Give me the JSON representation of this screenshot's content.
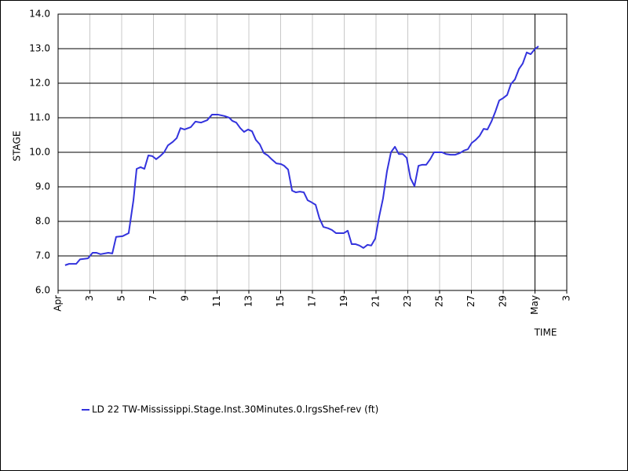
{
  "chart_data": {
    "type": "line",
    "xlabel": "TIME",
    "ylabel": "STAGE",
    "xlim": [
      0,
      32
    ],
    "ylim": [
      6,
      14
    ],
    "xticks": [
      {
        "value": 0,
        "label": "Apr"
      },
      {
        "value": 2,
        "label": "3"
      },
      {
        "value": 4,
        "label": "5"
      },
      {
        "value": 6,
        "label": "7"
      },
      {
        "value": 8,
        "label": "9"
      },
      {
        "value": 10,
        "label": "11"
      },
      {
        "value": 12,
        "label": "13"
      },
      {
        "value": 14,
        "label": "15"
      },
      {
        "value": 16,
        "label": "17"
      },
      {
        "value": 18,
        "label": "19"
      },
      {
        "value": 20,
        "label": "21"
      },
      {
        "value": 22,
        "label": "23"
      },
      {
        "value": 24,
        "label": "25"
      },
      {
        "value": 26,
        "label": "27"
      },
      {
        "value": 28,
        "label": "29"
      },
      {
        "value": 30,
        "label": "May"
      },
      {
        "value": 32,
        "label": "3"
      }
    ],
    "yticks": [
      {
        "value": 6,
        "label": "6.0"
      },
      {
        "value": 7,
        "label": "7.0"
      },
      {
        "value": 8,
        "label": "8.0"
      },
      {
        "value": 9,
        "label": "9.0"
      },
      {
        "value": 10,
        "label": "10.0"
      },
      {
        "value": 11,
        "label": "11.0"
      },
      {
        "value": 12,
        "label": "12.0"
      },
      {
        "value": 13,
        "label": "13.0"
      },
      {
        "value": 14,
        "label": "14.0"
      }
    ],
    "month_boundaries": [
      30
    ],
    "grid": true,
    "legend": "bottom",
    "x": [
      0.44,
      0.69,
      1.14,
      1.38,
      1.88,
      2.17,
      2.42,
      2.67,
      3.16,
      3.41,
      3.65,
      4.05,
      4.44,
      4.74,
      4.94,
      5.19,
      5.43,
      5.68,
      5.93,
      6.17,
      6.42,
      6.67,
      6.91,
      7.21,
      7.46,
      7.7,
      7.95,
      8.35,
      8.64,
      8.99,
      9.38,
      9.68,
      10.07,
      10.47,
      10.77,
      10.96,
      11.21,
      11.46,
      11.7,
      11.95,
      12.2,
      12.44,
      12.69,
      12.94,
      13.19,
      13.43,
      13.73,
      14.02,
      14.22,
      14.47,
      14.72,
      14.96,
      15.21,
      15.46,
      15.7,
      15.95,
      16.2,
      16.44,
      16.69,
      16.99,
      17.23,
      17.48,
      17.98,
      18.22,
      18.47,
      18.72,
      18.96,
      19.21,
      19.46,
      19.7,
      19.95,
      20.2,
      20.44,
      20.69,
      20.94,
      21.19,
      21.43,
      21.68,
      21.93,
      22.17,
      22.42,
      22.67,
      22.91,
      23.16,
      23.41,
      23.65,
      24.15,
      24.4,
      24.69,
      24.99,
      25.28,
      25.53,
      25.78,
      26.02,
      26.27,
      26.52,
      26.77,
      27.01,
      27.26,
      27.51,
      27.75,
      28.0,
      28.25,
      28.49,
      28.74,
      28.99,
      29.23,
      29.48,
      29.73,
      29.98,
      30.22
    ],
    "series": [
      {
        "name": "LD 22 TW-Mississippi.Stage.Inst.30Minutes.0.lrgsShef-rev (ft)",
        "color": "#3333dd",
        "values": [
          6.73,
          6.77,
          6.77,
          6.9,
          6.93,
          7.09,
          7.09,
          7.05,
          7.09,
          7.07,
          7.55,
          7.57,
          7.66,
          8.61,
          9.52,
          9.57,
          9.52,
          9.91,
          9.89,
          9.8,
          9.89,
          10.0,
          10.2,
          10.3,
          10.41,
          10.7,
          10.66,
          10.73,
          10.89,
          10.86,
          10.93,
          11.09,
          11.09,
          11.05,
          11.0,
          10.91,
          10.86,
          10.7,
          10.59,
          10.66,
          10.61,
          10.36,
          10.23,
          9.98,
          9.91,
          9.8,
          9.68,
          9.66,
          9.61,
          9.5,
          8.89,
          8.84,
          8.86,
          8.84,
          8.61,
          8.55,
          8.48,
          8.09,
          7.84,
          7.8,
          7.75,
          7.66,
          7.66,
          7.73,
          7.34,
          7.34,
          7.3,
          7.23,
          7.32,
          7.3,
          7.5,
          8.14,
          8.66,
          9.45,
          10.0,
          10.16,
          9.95,
          9.95,
          9.84,
          9.25,
          9.02,
          9.61,
          9.64,
          9.64,
          9.8,
          10.0,
          10.0,
          9.95,
          9.93,
          9.93,
          9.98,
          10.05,
          10.09,
          10.27,
          10.36,
          10.48,
          10.68,
          10.66,
          10.89,
          11.18,
          11.5,
          11.57,
          11.66,
          11.98,
          12.11,
          12.41,
          12.57,
          12.89,
          12.84,
          12.98,
          13.07
        ]
      }
    ]
  }
}
